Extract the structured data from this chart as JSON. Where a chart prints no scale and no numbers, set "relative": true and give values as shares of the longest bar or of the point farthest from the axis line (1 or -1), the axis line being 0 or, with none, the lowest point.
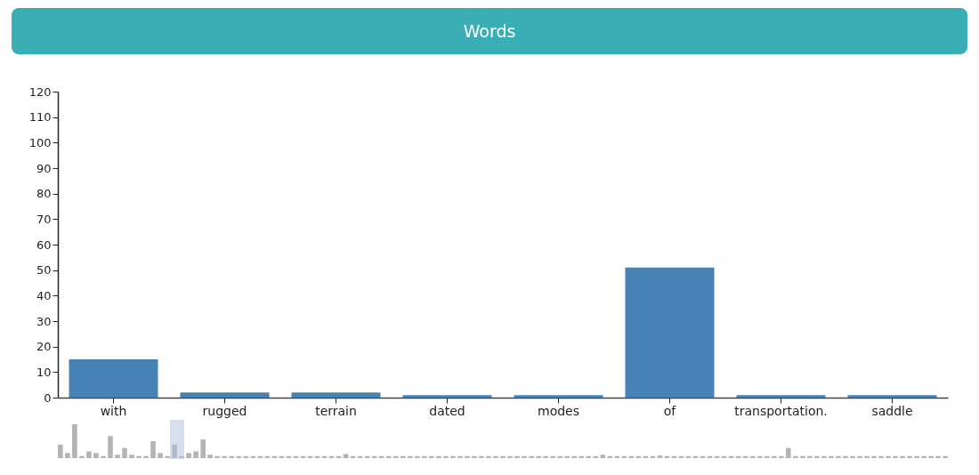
{
  "chart_data": [
    {
      "type": "bar",
      "title": "Words",
      "categories": [
        "with",
        "rugged",
        "terrain",
        "dated",
        "modes",
        "of",
        "transportation.",
        "saddle"
      ],
      "values": [
        15,
        2,
        2,
        1,
        1,
        51,
        1,
        1
      ],
      "color": "#4682b4",
      "ylim": [
        0,
        120
      ],
      "yticks": [
        0,
        10,
        20,
        30,
        40,
        50,
        60,
        70,
        80,
        90,
        100,
        110,
        120
      ],
      "grid": false
    },
    {
      "type": "bar",
      "relative": true,
      "tick_labels": false,
      "color": "#b4b4b4",
      "categories": [
        null,
        null,
        null,
        null,
        null,
        null,
        null,
        null,
        null,
        null,
        null,
        null,
        null,
        null,
        null,
        null,
        null,
        null,
        null,
        null,
        null,
        null,
        null,
        null,
        null,
        null,
        null,
        null,
        null,
        null,
        null,
        null,
        null,
        null,
        null,
        null,
        null,
        null,
        null,
        null,
        null,
        null,
        null,
        null,
        null,
        null,
        null,
        null,
        null,
        null,
        null,
        null,
        null,
        null,
        null,
        null,
        null,
        null,
        null,
        null,
        null,
        null,
        null,
        null,
        null,
        null,
        null,
        null,
        null,
        null,
        null,
        null,
        null,
        null,
        null,
        null,
        null,
        null,
        null,
        null,
        null,
        null,
        null,
        null,
        null,
        null,
        null,
        null,
        null,
        null,
        null,
        null,
        null,
        null,
        null,
        null,
        null,
        null,
        null,
        null,
        null,
        null,
        null,
        null,
        null,
        null,
        null,
        null,
        null,
        null,
        null,
        null,
        null,
        null,
        null,
        null,
        null,
        null,
        null,
        null,
        null,
        null,
        null,
        null,
        null
      ],
      "values": [
        0.4,
        0.15,
        1,
        0.06,
        0.2,
        0.15,
        0.06,
        0.65,
        0.1,
        0.3,
        0.1,
        0.06,
        0.06,
        0.5,
        0.15,
        0.06,
        0.4,
        0.06,
        0.15,
        0.2,
        0.55,
        0.1,
        0.06,
        0.06,
        0.06,
        0.06,
        0.06,
        0.06,
        0.06,
        0.06,
        0.06,
        0.06,
        0.06,
        0.06,
        0.06,
        0.06,
        0.06,
        0.06,
        0.06,
        0.06,
        0.12,
        0.06,
        0.06,
        0.06,
        0.06,
        0.06,
        0.06,
        0.06,
        0.06,
        0.06,
        0.06,
        0.06,
        0.06,
        0.06,
        0.06,
        0.06,
        0.06,
        0.06,
        0.06,
        0.06,
        0.06,
        0.06,
        0.06,
        0.06,
        0.06,
        0.06,
        0.06,
        0.06,
        0.06,
        0.06,
        0.06,
        0.06,
        0.06,
        0.06,
        0.06,
        0.06,
        0.1,
        0.06,
        0.06,
        0.06,
        0.06,
        0.06,
        0.06,
        0.06,
        0.08,
        0.06,
        0.06,
        0.06,
        0.06,
        0.06,
        0.06,
        0.06,
        0.06,
        0.06,
        0.06,
        0.06,
        0.06,
        0.06,
        0.06,
        0.06,
        0.06,
        0.06,
        0.3,
        0.06,
        0.06,
        0.06,
        0.06,
        0.06,
        0.06,
        0.06,
        0.06,
        0.06,
        0.06,
        0.06,
        0.06,
        0.06,
        0.06,
        0.06,
        0.06,
        0.06,
        0.06,
        0.06,
        0.06,
        0.06,
        0.06
      ]
    }
  ]
}
